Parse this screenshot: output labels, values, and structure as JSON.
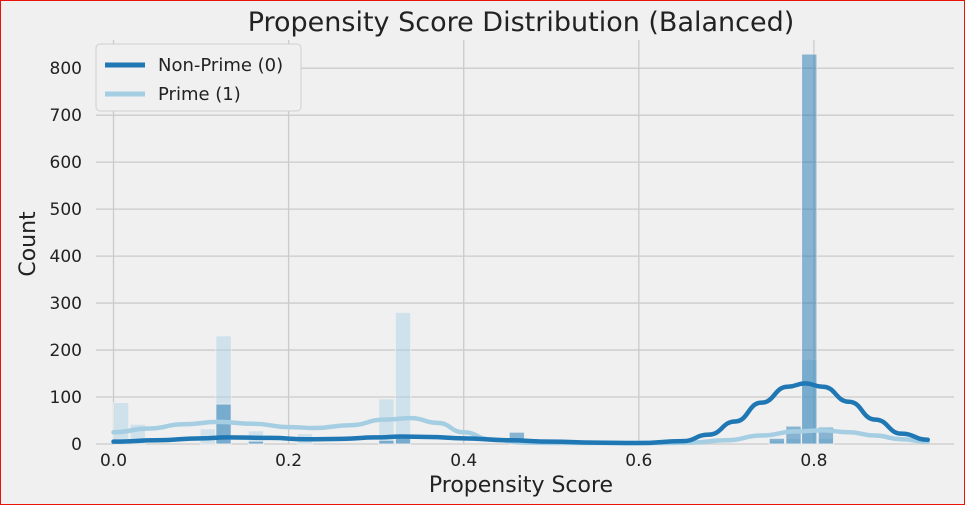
{
  "chart_data": {
    "type": "histogram",
    "title": "Propensity Score Distribution (Balanced)",
    "xlabel": "Propensity Score",
    "ylabel": "Count",
    "xlim": [
      -0.02,
      0.96
    ],
    "ylim": [
      0,
      860
    ],
    "xticks": [
      0.0,
      0.2,
      0.4,
      0.6,
      0.8
    ],
    "xtick_labels": [
      "0.0",
      "0.2",
      "0.4",
      "0.6",
      "0.8"
    ],
    "yticks": [
      0,
      100,
      200,
      300,
      400,
      500,
      600,
      700,
      800
    ],
    "ytick_labels": [
      "0",
      "100",
      "200",
      "300",
      "400",
      "500",
      "600",
      "700",
      "800"
    ],
    "grid": true,
    "legend_position": "top-left",
    "bin_width": 0.0185,
    "series": [
      {
        "name": "Non-Prime (0)",
        "color": "#1f77b4",
        "hist": [
          {
            "x": 0.117,
            "count": 85
          },
          {
            "x": 0.154,
            "count": 6
          },
          {
            "x": 0.303,
            "count": 8
          },
          {
            "x": 0.322,
            "count": 20
          },
          {
            "x": 0.452,
            "count": 25
          },
          {
            "x": 0.749,
            "count": 12
          },
          {
            "x": 0.768,
            "count": 38
          },
          {
            "x": 0.786,
            "count": 830
          },
          {
            "x": 0.805,
            "count": 36
          }
        ],
        "kde": [
          [
            0.0,
            5
          ],
          [
            0.05,
            8
          ],
          [
            0.1,
            12
          ],
          [
            0.13,
            14
          ],
          [
            0.18,
            13
          ],
          [
            0.22,
            10
          ],
          [
            0.26,
            11
          ],
          [
            0.3,
            14
          ],
          [
            0.33,
            16
          ],
          [
            0.36,
            15
          ],
          [
            0.4,
            12
          ],
          [
            0.45,
            8
          ],
          [
            0.5,
            5
          ],
          [
            0.55,
            3
          ],
          [
            0.6,
            2
          ],
          [
            0.65,
            6
          ],
          [
            0.68,
            20
          ],
          [
            0.71,
            48
          ],
          [
            0.74,
            88
          ],
          [
            0.77,
            122
          ],
          [
            0.79,
            129
          ],
          [
            0.81,
            122
          ],
          [
            0.84,
            90
          ],
          [
            0.87,
            52
          ],
          [
            0.9,
            22
          ],
          [
            0.93,
            9
          ]
        ]
      },
      {
        "name": "Prime (1)",
        "color": "#a6cee3",
        "hist": [
          {
            "x": 0.0,
            "count": 88
          },
          {
            "x": 0.019,
            "count": 42
          },
          {
            "x": 0.099,
            "count": 32
          },
          {
            "x": 0.117,
            "count": 230
          },
          {
            "x": 0.154,
            "count": 28
          },
          {
            "x": 0.21,
            "count": 22
          },
          {
            "x": 0.303,
            "count": 96
          },
          {
            "x": 0.322,
            "count": 280
          },
          {
            "x": 0.749,
            "count": 8
          },
          {
            "x": 0.768,
            "count": 12
          },
          {
            "x": 0.786,
            "count": 180
          },
          {
            "x": 0.805,
            "count": 12
          }
        ],
        "kde": [
          [
            0.0,
            25
          ],
          [
            0.04,
            33
          ],
          [
            0.08,
            42
          ],
          [
            0.12,
            47
          ],
          [
            0.16,
            43
          ],
          [
            0.2,
            36
          ],
          [
            0.23,
            34
          ],
          [
            0.27,
            40
          ],
          [
            0.31,
            52
          ],
          [
            0.34,
            55
          ],
          [
            0.37,
            45
          ],
          [
            0.4,
            25
          ],
          [
            0.43,
            10
          ],
          [
            0.47,
            3
          ],
          [
            0.52,
            2
          ],
          [
            0.58,
            2
          ],
          [
            0.62,
            2
          ],
          [
            0.66,
            3
          ],
          [
            0.7,
            8
          ],
          [
            0.74,
            18
          ],
          [
            0.78,
            27
          ],
          [
            0.81,
            29
          ],
          [
            0.84,
            25
          ],
          [
            0.87,
            18
          ],
          [
            0.9,
            10
          ],
          [
            0.93,
            5
          ]
        ]
      }
    ]
  }
}
